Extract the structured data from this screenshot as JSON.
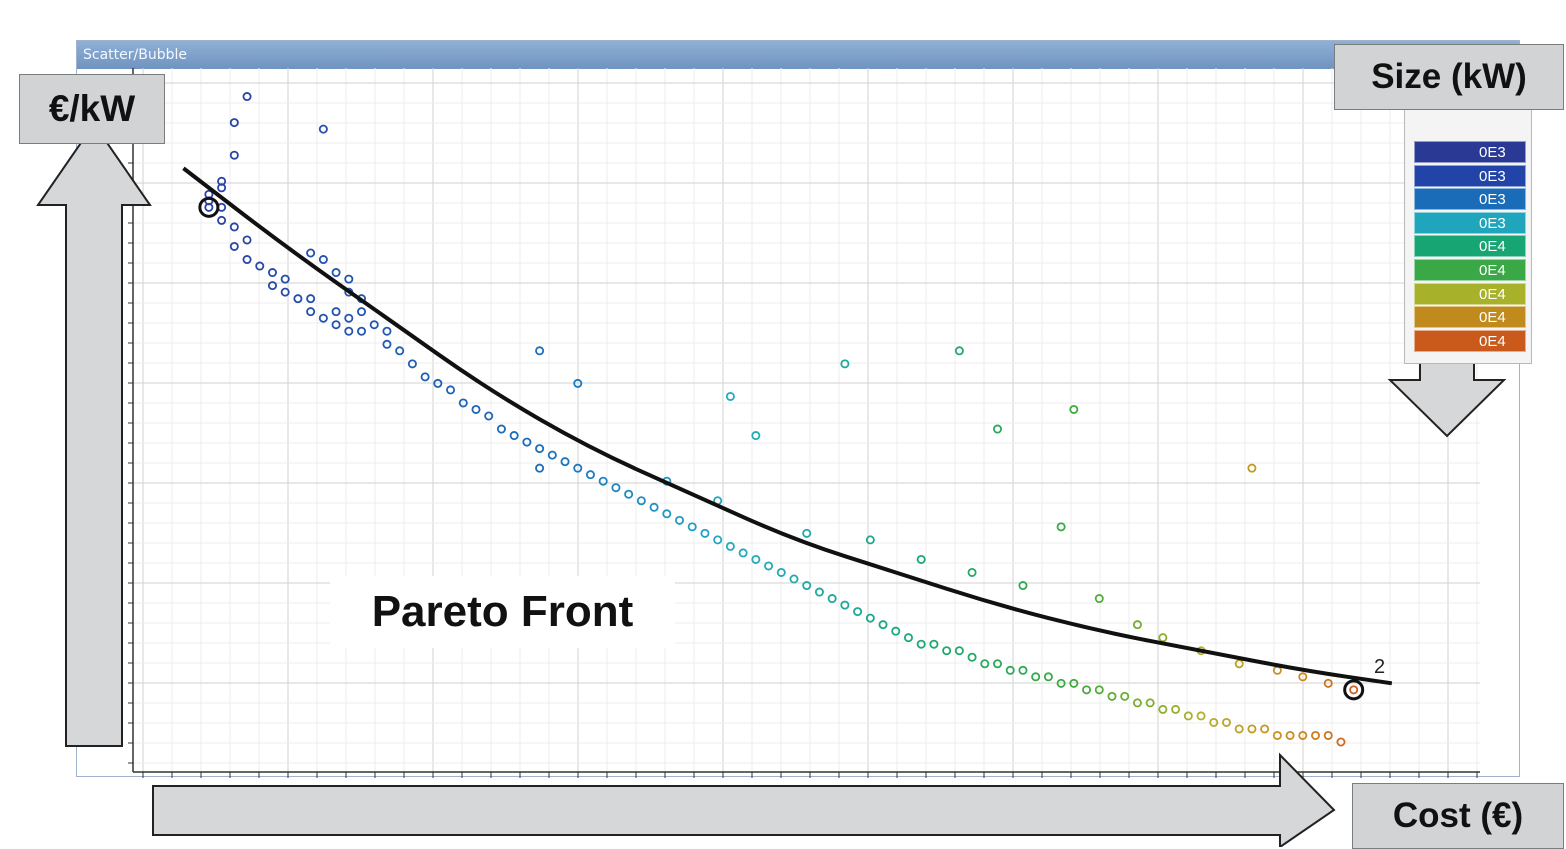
{
  "window": {
    "title": "Scatter/Bubble",
    "tool_icons": [
      "wrench-icon",
      "popout-icon",
      "close-icon"
    ]
  },
  "labels": {
    "y_axis": "€/kW",
    "size": "Size (kW)",
    "x_axis": "Cost (€)",
    "pareto": "Pareto Front",
    "solution_2": "2"
  },
  "legend": {
    "items": [
      {
        "text": "0E3",
        "color": "#2a3a94"
      },
      {
        "text": "0E3",
        "color": "#2244a8"
      },
      {
        "text": "0E3",
        "color": "#1a6bb8"
      },
      {
        "text": "0E3",
        "color": "#1fa6bd"
      },
      {
        "text": "0E4",
        "color": "#17a574"
      },
      {
        "text": "0E4",
        "color": "#3aa846"
      },
      {
        "text": "0E4",
        "color": "#a7b12a"
      },
      {
        "text": "0E4",
        "color": "#c08a1c"
      },
      {
        "text": "0E4",
        "color": "#c95a1c"
      }
    ]
  },
  "chart_data": {
    "type": "scatter",
    "title": "",
    "xlabel": "Cost (€)",
    "ylabel": "€/kW",
    "color_by": "Size (kW)",
    "grid": true,
    "xlim": [
      0,
      100
    ],
    "ylim": [
      0,
      100
    ],
    "series": [
      {
        "color_scale": true,
        "points": [
          [
            4,
            82
          ],
          [
            4,
            84
          ],
          [
            4,
            83
          ],
          [
            5,
            85
          ],
          [
            5,
            80
          ],
          [
            5,
            82
          ],
          [
            6,
            90
          ],
          [
            6,
            95
          ],
          [
            7,
            99
          ],
          [
            5,
            86
          ],
          [
            6,
            79
          ],
          [
            6,
            76
          ],
          [
            7,
            77
          ],
          [
            7,
            74
          ],
          [
            8,
            73
          ],
          [
            9,
            72
          ],
          [
            9,
            70
          ],
          [
            10,
            71
          ],
          [
            10,
            69
          ],
          [
            11,
            68
          ],
          [
            12,
            68
          ],
          [
            12,
            66
          ],
          [
            13,
            65
          ],
          [
            14,
            66
          ],
          [
            14,
            64
          ],
          [
            15,
            65
          ],
          [
            15,
            63
          ],
          [
            16,
            63
          ],
          [
            13,
            94
          ],
          [
            12,
            75
          ],
          [
            13,
            74
          ],
          [
            14,
            72
          ],
          [
            15,
            71
          ],
          [
            15,
            69
          ],
          [
            16,
            68
          ],
          [
            16,
            66
          ],
          [
            17,
            64
          ],
          [
            18,
            63
          ],
          [
            18,
            61
          ],
          [
            19,
            60
          ],
          [
            20,
            58
          ],
          [
            21,
            56
          ],
          [
            22,
            55
          ],
          [
            23,
            54
          ],
          [
            24,
            52
          ],
          [
            25,
            51
          ],
          [
            26,
            50
          ],
          [
            27,
            48
          ],
          [
            28,
            47
          ],
          [
            29,
            46
          ],
          [
            30,
            45
          ],
          [
            31,
            44
          ],
          [
            32,
            43
          ],
          [
            33,
            42
          ],
          [
            34,
            41
          ],
          [
            35,
            40
          ],
          [
            36,
            39
          ],
          [
            37,
            38
          ],
          [
            38,
            37
          ],
          [
            39,
            36
          ],
          [
            40,
            35
          ],
          [
            41,
            34
          ],
          [
            42,
            33
          ],
          [
            43,
            32
          ],
          [
            44,
            31
          ],
          [
            45,
            30
          ],
          [
            46,
            29
          ],
          [
            47,
            28
          ],
          [
            48,
            27
          ],
          [
            49,
            26
          ],
          [
            50,
            25
          ],
          [
            51,
            24
          ],
          [
            52,
            23
          ],
          [
            53,
            22
          ],
          [
            54,
            21
          ],
          [
            55,
            20
          ],
          [
            56,
            19
          ],
          [
            57,
            18
          ],
          [
            58,
            17
          ],
          [
            59,
            16
          ],
          [
            60,
            15
          ],
          [
            61,
            15
          ],
          [
            62,
            14
          ],
          [
            63,
            14
          ],
          [
            64,
            13
          ],
          [
            65,
            12
          ],
          [
            66,
            12
          ],
          [
            67,
            11
          ],
          [
            68,
            11
          ],
          [
            69,
            10
          ],
          [
            70,
            10
          ],
          [
            71,
            9
          ],
          [
            72,
            9
          ],
          [
            73,
            8
          ],
          [
            74,
            8
          ],
          [
            75,
            7
          ],
          [
            76,
            7
          ],
          [
            77,
            6
          ],
          [
            78,
            6
          ],
          [
            79,
            5
          ],
          [
            80,
            5
          ],
          [
            81,
            4
          ],
          [
            82,
            4
          ],
          [
            83,
            3
          ],
          [
            84,
            3
          ],
          [
            85,
            2
          ],
          [
            86,
            2
          ],
          [
            87,
            2
          ],
          [
            88,
            1
          ],
          [
            89,
            1
          ],
          [
            90,
            1
          ],
          [
            91,
            1
          ],
          [
            92,
            1
          ],
          [
            93,
            0
          ],
          [
            30,
            60
          ],
          [
            33,
            55
          ],
          [
            45,
            53
          ],
          [
            47,
            47
          ],
          [
            54,
            58
          ],
          [
            63,
            60
          ],
          [
            66,
            48
          ],
          [
            72,
            51
          ],
          [
            71,
            33
          ],
          [
            86,
            42
          ],
          [
            30,
            42
          ],
          [
            40,
            40
          ],
          [
            44,
            37
          ],
          [
            51,
            32
          ],
          [
            56,
            31
          ],
          [
            60,
            28
          ],
          [
            64,
            26
          ],
          [
            68,
            24
          ],
          [
            74,
            22
          ],
          [
            77,
            18
          ],
          [
            79,
            16
          ],
          [
            82,
            14
          ],
          [
            85,
            12
          ],
          [
            88,
            11
          ],
          [
            90,
            10
          ],
          [
            92,
            9
          ],
          [
            94,
            8
          ]
        ]
      }
    ],
    "pareto_front": [
      [
        2,
        88
      ],
      [
        10,
        76
      ],
      [
        18,
        65
      ],
      [
        26,
        54
      ],
      [
        34,
        45
      ],
      [
        42,
        38
      ],
      [
        50,
        31
      ],
      [
        58,
        26
      ],
      [
        66,
        21
      ],
      [
        74,
        17
      ],
      [
        82,
        14
      ],
      [
        90,
        11
      ],
      [
        97,
        9
      ]
    ],
    "highlighted": [
      {
        "x": 4,
        "y": 82
      },
      {
        "x": 94,
        "y": 8,
        "label": "2"
      }
    ]
  }
}
